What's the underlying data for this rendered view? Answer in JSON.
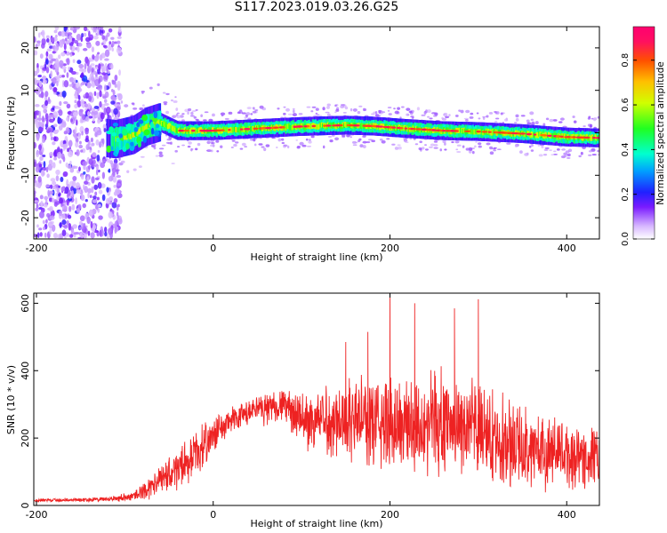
{
  "title": "S117.2023.019.03.26.G25",
  "chart_data": [
    {
      "type": "heatmap",
      "xlabel": "Height of straight line (km)",
      "ylabel": "Frequency (Hz)",
      "xlim": [
        -203,
        437
      ],
      "ylim": [
        -25,
        25
      ],
      "xticks": [
        -200,
        0,
        200,
        400
      ],
      "yticks": [
        20,
        10,
        0,
        -10,
        -20
      ],
      "colorbar": {
        "label": "Normalized spectral amplitude",
        "range": [
          0.0,
          0.95
        ],
        "ticks": [
          0.0,
          0.2,
          0.4,
          0.6,
          0.8
        ]
      },
      "ridge": {
        "x": [
          -130,
          -110,
          -90,
          -75,
          -60,
          -40,
          0,
          50,
          100,
          150,
          180,
          220,
          260,
          300,
          350,
          400,
          437
        ],
        "y": [
          -1.0,
          -1.5,
          -0.5,
          1.5,
          2.5,
          0.5,
          0.5,
          1.0,
          1.5,
          1.8,
          1.6,
          1.0,
          0.5,
          0.3,
          -0.2,
          -1.0,
          -1.2
        ]
      },
      "noise_region_x": [
        -203,
        -105
      ]
    },
    {
      "type": "line",
      "xlabel": "Height of straight line (km)",
      "ylabel": "SNR (10 * v/v)",
      "xlim": [
        -203,
        437
      ],
      "ylim": [
        0,
        630
      ],
      "xticks": [
        -200,
        0,
        200,
        400
      ],
      "yticks": [
        0,
        200,
        400,
        600
      ],
      "line_color": "#ee2222",
      "envelope": {
        "x": [
          -203,
          -120,
          -90,
          -70,
          -40,
          -20,
          0,
          20,
          40,
          60,
          80,
          100,
          130,
          160,
          200,
          240,
          280,
          320,
          360,
          400,
          437
        ],
        "mean": [
          15,
          18,
          28,
          55,
          110,
          150,
          210,
          250,
          275,
          290,
          300,
          250,
          255,
          260,
          240,
          250,
          240,
          200,
          170,
          150,
          140
        ],
        "spread": [
          6,
          8,
          18,
          40,
          70,
          80,
          60,
          50,
          50,
          55,
          60,
          90,
          130,
          150,
          170,
          180,
          170,
          160,
          140,
          120,
          110
        ]
      },
      "peaks": [
        {
          "x": 200,
          "y": 630
        },
        {
          "x": 300,
          "y": 612
        },
        {
          "x": 228,
          "y": 600
        },
        {
          "x": 273,
          "y": 585
        },
        {
          "x": 175,
          "y": 515
        },
        {
          "x": 150,
          "y": 485
        }
      ]
    }
  ]
}
